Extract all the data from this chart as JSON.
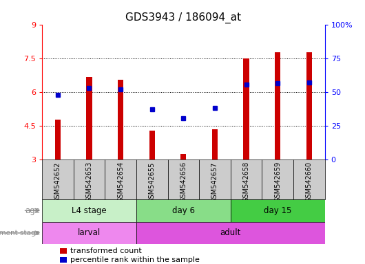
{
  "title": "GDS3943 / 186094_at",
  "samples": [
    "GSM542652",
    "GSM542653",
    "GSM542654",
    "GSM542655",
    "GSM542656",
    "GSM542657",
    "GSM542658",
    "GSM542659",
    "GSM542660"
  ],
  "bar_values": [
    4.8,
    6.7,
    6.55,
    4.3,
    3.25,
    4.35,
    7.5,
    7.8,
    7.8
  ],
  "percentile_values": [
    5.9,
    6.2,
    6.15,
    5.25,
    4.85,
    5.3,
    6.35,
    6.4,
    6.45
  ],
  "bar_color": "#cc0000",
  "dot_color": "#0000cc",
  "ylim_left": [
    3,
    9
  ],
  "ylim_right": [
    0,
    100
  ],
  "yticks_left": [
    3,
    4.5,
    6,
    7.5,
    9
  ],
  "ytick_labels_left": [
    "3",
    "4.5",
    "6",
    "7.5",
    "9"
  ],
  "yticks_right": [
    0,
    25,
    50,
    75,
    100
  ],
  "ytick_labels_right": [
    "0",
    "25",
    "50",
    "75",
    "100%"
  ],
  "hlines": [
    4.5,
    6.0,
    7.5
  ],
  "age_groups": [
    {
      "label": "L4 stage",
      "start": 0,
      "end": 2,
      "color": "#c8f0c8"
    },
    {
      "label": "day 6",
      "start": 3,
      "end": 5,
      "color": "#88dd88"
    },
    {
      "label": "day 15",
      "start": 6,
      "end": 8,
      "color": "#44cc44"
    }
  ],
  "dev_groups": [
    {
      "label": "larval",
      "start": 0,
      "end": 2,
      "color": "#ee88ee"
    },
    {
      "label": "adult",
      "start": 3,
      "end": 8,
      "color": "#dd55dd"
    }
  ],
  "legend_items": [
    {
      "color": "#cc0000",
      "label": "transformed count"
    },
    {
      "color": "#0000cc",
      "label": "percentile rank within the sample"
    }
  ],
  "bar_width": 0.18,
  "sample_box_color": "#cccccc",
  "label_color": "#888888"
}
